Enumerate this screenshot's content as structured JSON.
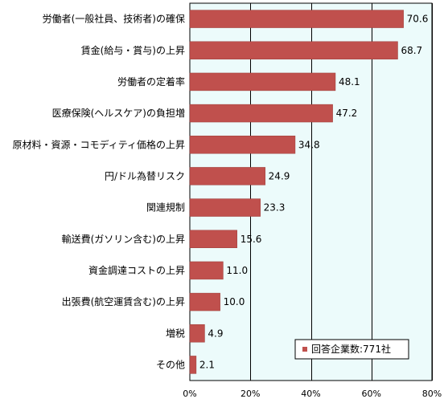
{
  "chart_data": {
    "type": "bar",
    "orientation": "horizontal",
    "categories": [
      "労働者(一般社員、技術者)の確保",
      "賃金(給与・賞与)の上昇",
      "労働者の定着率",
      "医療保険(ヘルスケア)の負担増",
      "原材料・資源・コモディティ価格の上昇",
      "円/ドル為替リスク",
      "関連規制",
      "輸送費(ガソリン含む)の上昇",
      "資金調達コストの上昇",
      "出張費(航空運賃含む)の上昇",
      "増税",
      "その他"
    ],
    "series": [
      {
        "name": "回答企業数:771社",
        "values": [
          70.6,
          68.7,
          48.1,
          47.2,
          34.8,
          24.9,
          23.3,
          15.6,
          11.0,
          10.0,
          4.9,
          2.1
        ],
        "value_labels": [
          "70.6",
          "68.7",
          "48.1",
          "47.2",
          "34.8",
          "24.9",
          "23.3",
          "15.6",
          "11.0",
          "10.0",
          "4.9",
          "2.1"
        ]
      }
    ],
    "xlim": [
      0,
      80
    ],
    "xticks": [
      0,
      20,
      40,
      60,
      80
    ],
    "xtick_labels": [
      "0%",
      "20%",
      "40%",
      "60%",
      "80%"
    ],
    "grid": true,
    "legend_position": "bottom-right",
    "colors": {
      "bar": "#c0504d",
      "bar_edge": "#9b3b38",
      "plot_background": "#ecfbfb",
      "grid": "#000000"
    }
  }
}
